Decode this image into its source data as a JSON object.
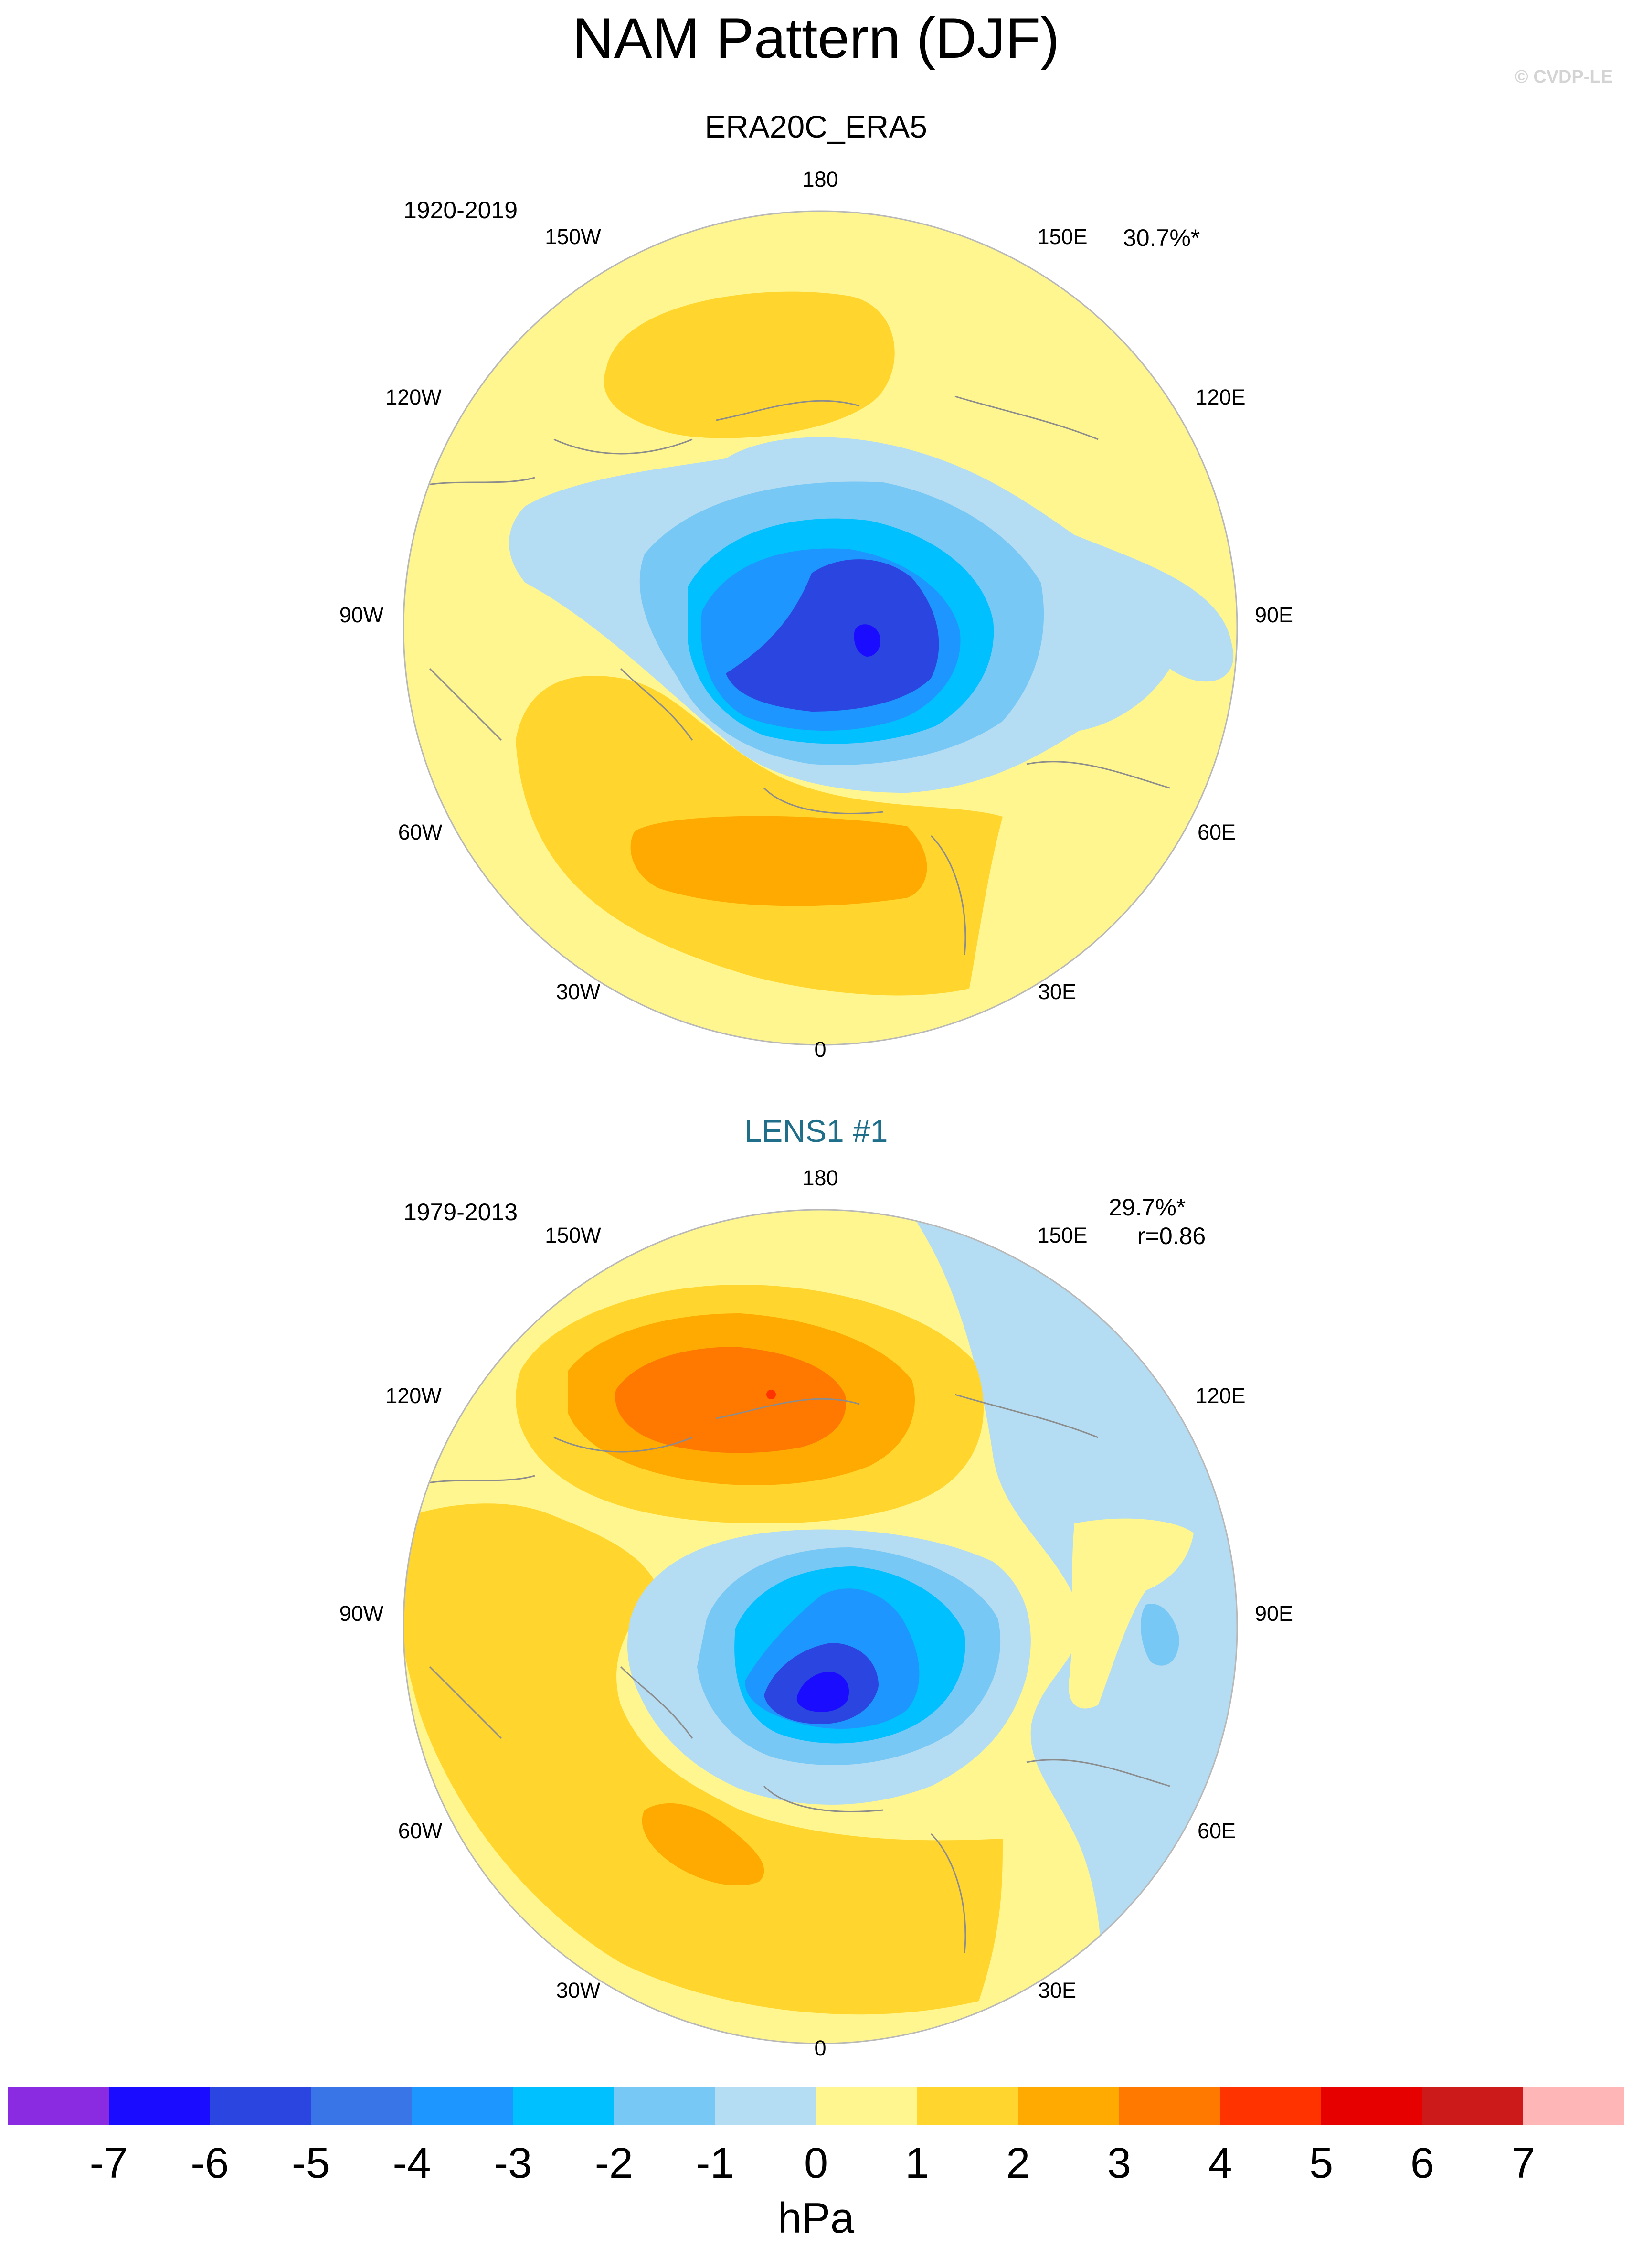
{
  "title": "NAM Pattern (DJF)",
  "copyright": "© CVDP-LE",
  "panels": [
    {
      "title": "ERA20C_ERA5",
      "title_color": "#000000",
      "period": "1920-2019",
      "variance": "30.7%*",
      "corr": ""
    },
    {
      "title": "LENS1 #1",
      "title_color": "#1f6f8b",
      "period": "1979-2013",
      "variance": "29.7%*",
      "corr": "r=0.86"
    }
  ],
  "lon_labels": {
    "deg180": "180",
    "w150": "150W",
    "e150": "150E",
    "w120": "120W",
    "e120": "120E",
    "w90": "90W",
    "e90": "90E",
    "w60": "60W",
    "e60": "60E",
    "w30": "30W",
    "e30": "30E",
    "deg0": "0"
  },
  "colorbar": {
    "unit": "hPa",
    "colors": [
      "#8a2be2",
      "#1a0dff",
      "#2a45e0",
      "#3a75e8",
      "#1e96ff",
      "#00c0ff",
      "#78c8f5",
      "#b4dcf2",
      "#fff68f",
      "#ffd52e",
      "#ffaa00",
      "#ff7800",
      "#ff3300",
      "#e60000",
      "#cc1a1a",
      "#ffb6b6"
    ],
    "labels": [
      "-7",
      "-6",
      "-5",
      "-4",
      "-3",
      "-2",
      "-1",
      "0",
      "1",
      "2",
      "3",
      "4",
      "5",
      "6",
      "7"
    ]
  }
}
